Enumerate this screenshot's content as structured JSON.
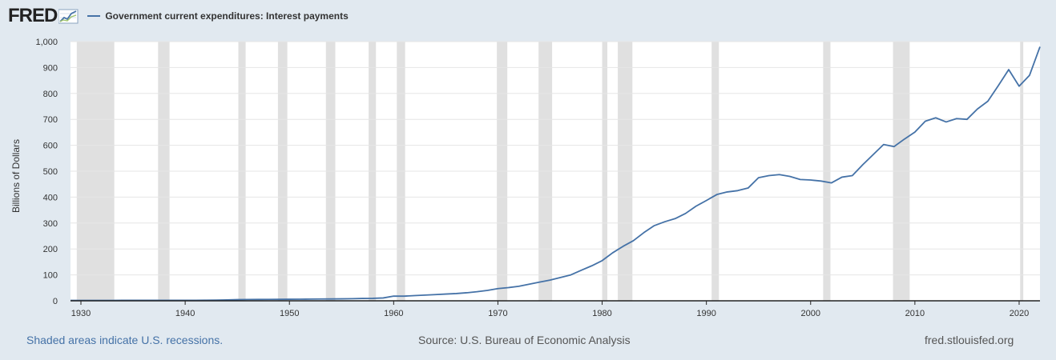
{
  "header": {
    "logo_text": "FRED",
    "legend_label": "Government current expenditures: Interest payments",
    "series_color": "#4572a7"
  },
  "footer": {
    "recession_note": "Shaded areas indicate U.S. recessions.",
    "source": "Source: U.S. Bureau of Economic Analysis",
    "site": "fred.stlouisfed.org"
  },
  "chart_data": {
    "type": "line",
    "title": "",
    "xlabel": "",
    "ylabel": "Billions of Dollars",
    "xlim": [
      1929,
      2022
    ],
    "ylim": [
      0,
      1000
    ],
    "x_ticks": [
      1930,
      1940,
      1950,
      1960,
      1970,
      1980,
      1990,
      2000,
      2010,
      2020
    ],
    "y_ticks": [
      0,
      100,
      200,
      300,
      400,
      500,
      600,
      700,
      800,
      900,
      1000
    ],
    "y_tick_labels": [
      "0",
      "100",
      "200",
      "300",
      "400",
      "500",
      "600",
      "700",
      "800",
      "900",
      "1,000"
    ],
    "grid": "horizontal",
    "recession_color": "#e0e0e0",
    "recessions": [
      [
        1929.6,
        1933.2
      ],
      [
        1937.4,
        1938.5
      ],
      [
        1945.1,
        1945.8
      ],
      [
        1948.9,
        1949.8
      ],
      [
        1953.5,
        1954.4
      ],
      [
        1957.6,
        1958.3
      ],
      [
        1960.3,
        1961.1
      ],
      [
        1969.9,
        1970.9
      ],
      [
        1973.9,
        1975.2
      ],
      [
        1980.0,
        1980.5
      ],
      [
        1981.5,
        1982.9
      ],
      [
        1990.5,
        1991.2
      ],
      [
        2001.2,
        2001.9
      ],
      [
        2007.9,
        2009.5
      ],
      [
        2020.1,
        2020.4
      ]
    ],
    "series": [
      {
        "color": "#4572a7",
        "x": [
          1929,
          1930,
          1931,
          1932,
          1933,
          1934,
          1935,
          1936,
          1937,
          1938,
          1939,
          1940,
          1941,
          1942,
          1943,
          1944,
          1945,
          1946,
          1947,
          1948,
          1949,
          1950,
          1951,
          1952,
          1953,
          1954,
          1955,
          1956,
          1957,
          1958,
          1959,
          1960,
          1961,
          1962,
          1963,
          1964,
          1965,
          1966,
          1967,
          1968,
          1969,
          1970,
          1971,
          1972,
          1973,
          1974,
          1975,
          1976,
          1977,
          1978,
          1979,
          1980,
          1981,
          1982,
          1983,
          1984,
          1985,
          1986,
          1987,
          1988,
          1989,
          1990,
          1991,
          1992,
          1993,
          1994,
          1995,
          1996,
          1997,
          1998,
          1999,
          2000,
          2001,
          2002,
          2003,
          2004,
          2005,
          2006,
          2007,
          2008,
          2009,
          2010,
          2011,
          2012,
          2013,
          2014,
          2015,
          2016,
          2017,
          2018,
          2019,
          2020,
          2021,
          2022
        ],
        "values": [
          1.5,
          1.5,
          1.5,
          1.6,
          1.6,
          1.7,
          1.7,
          1.8,
          1.8,
          1.8,
          1.9,
          1.9,
          2.0,
          2.3,
          2.8,
          3.5,
          4.5,
          5.0,
          5.2,
          5.4,
          5.6,
          6.0,
          6.2,
          6.5,
          7.0,
          7.2,
          7.5,
          8.0,
          9.0,
          9.5,
          11,
          18,
          18,
          20,
          22,
          24,
          26,
          28,
          31,
          35,
          40,
          47,
          51,
          56,
          64,
          72,
          80,
          90,
          100,
          118,
          135,
          155,
          185,
          210,
          232,
          263,
          290,
          305,
          317,
          337,
          365,
          387,
          410,
          420,
          425,
          435,
          475,
          483,
          487,
          480,
          468,
          466,
          462,
          455,
          477,
          483,
          525,
          564,
          603,
          595,
          624,
          651,
          693,
          706,
          690,
          703,
          700,
          740,
          770,
          830,
          892,
          828,
          870,
          980
        ]
      }
    ]
  }
}
